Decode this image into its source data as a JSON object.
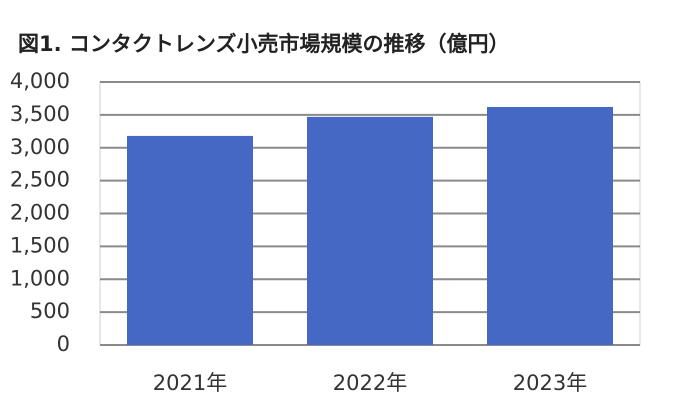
{
  "chart_data": {
    "type": "bar",
    "title": "図1. コンタクトレンズ小売市場規模の推移（億円）",
    "categories": [
      "2021年",
      "2022年",
      "2023年"
    ],
    "values": [
      3180,
      3470,
      3620
    ],
    "color": "#4468c4",
    "ylim": [
      0,
      4000
    ],
    "yticks": [
      0,
      500,
      {
        "value": 1000,
        "label": "1,000"
      },
      {
        "value": 1500,
        "label": "1,500"
      },
      {
        "value": 2000,
        "label": "2,000"
      },
      {
        "value": 2500,
        "label": "2,500"
      },
      {
        "value": 3000,
        "label": "3,000"
      },
      {
        "value": 3500,
        "label": "3,500"
      },
      {
        "value": 4000,
        "label": "4,000"
      }
    ],
    "grid": true
  }
}
